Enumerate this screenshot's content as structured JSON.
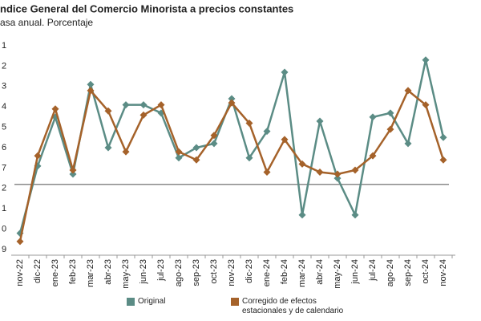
{
  "chart_data": {
    "type": "line",
    "title": "ndice General del Comercio Minorista a precios constantes",
    "subtitle": "asa anual. Porcentaje",
    "categories": [
      "nov-22",
      "dic-22",
      "ene-23",
      "feb-23",
      "mar-23",
      "abr-23",
      "may-23",
      "jun-23",
      "jul-23",
      "ago-23",
      "sep-23",
      "oct-23",
      "nov-23",
      "dic-23",
      "ene-24",
      "feb-24",
      "mar-24",
      "abr-24",
      "may-24",
      "jun-24",
      "jul-24",
      "ago-24",
      "sep-24",
      "oct-24",
      "nov-24"
    ],
    "series": [
      {
        "name": "Original",
        "color": "#5b8c85",
        "values": [
          0.8,
          4.1,
          6.5,
          3.7,
          8.1,
          5.0,
          7.1,
          7.1,
          6.7,
          4.5,
          5.0,
          5.2,
          7.4,
          4.5,
          5.8,
          8.7,
          1.7,
          6.3,
          3.5,
          1.7,
          6.5,
          6.7,
          5.2,
          9.3,
          5.5
        ]
      },
      {
        "name": "Corregido de efectos estacionales y de calendario",
        "color": "#a5622a",
        "values": [
          0.4,
          4.6,
          6.9,
          3.9,
          7.8,
          6.8,
          4.8,
          6.6,
          7.1,
          4.8,
          4.4,
          5.6,
          7.2,
          6.2,
          3.8,
          5.4,
          4.2,
          3.8,
          3.7,
          3.9,
          4.6,
          5.9,
          7.8,
          7.1,
          4.4
        ]
      }
    ],
    "ylim": [
      0,
      10
    ],
    "yticks": [
      {
        "value": 0,
        "label": "9"
      },
      {
        "value": 1,
        "label": "0"
      },
      {
        "value": 2,
        "label": "1"
      },
      {
        "value": 3,
        "label": "2"
      },
      {
        "value": 4,
        "label": "7"
      },
      {
        "value": 5,
        "label": "6"
      },
      {
        "value": 6,
        "label": "5"
      },
      {
        "value": 7,
        "label": "4"
      },
      {
        "value": 8,
        "label": "3"
      },
      {
        "value": 9,
        "label": "2"
      },
      {
        "value": 10,
        "label": "1"
      }
    ],
    "reference_line": 3.2
  }
}
